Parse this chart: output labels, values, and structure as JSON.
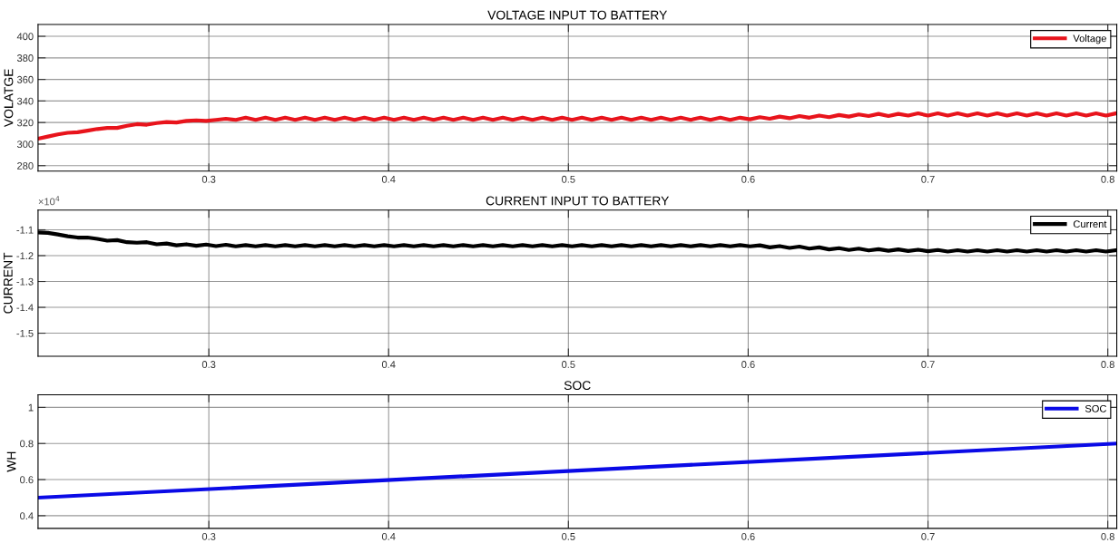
{
  "chart_data": [
    {
      "type": "line",
      "title": "VOLTAGE INPUT TO BATTERY",
      "ylabel": "VOLATGE",
      "x": [
        0.205,
        0.2105,
        0.216,
        0.2215,
        0.227,
        0.2325,
        0.238,
        0.2435,
        0.249,
        0.2545,
        0.26,
        0.2655,
        0.271,
        0.2765,
        0.282,
        0.2875,
        0.293,
        0.2985,
        0.304,
        0.3095,
        0.315,
        0.3205,
        0.326,
        0.3315,
        0.337,
        0.3425,
        0.348,
        0.3535,
        0.359,
        0.3645,
        0.37,
        0.3755,
        0.381,
        0.3865,
        0.392,
        0.3975,
        0.403,
        0.4085,
        0.414,
        0.4195,
        0.425,
        0.4305,
        0.436,
        0.4415,
        0.447,
        0.4525,
        0.458,
        0.4635,
        0.469,
        0.4745,
        0.48,
        0.4855,
        0.491,
        0.4965,
        0.502,
        0.5075,
        0.513,
        0.5185,
        0.524,
        0.5295,
        0.535,
        0.5405,
        0.546,
        0.5515,
        0.557,
        0.5625,
        0.568,
        0.5735,
        0.579,
        0.5845,
        0.59,
        0.5955,
        0.601,
        0.6065,
        0.612,
        0.6175,
        0.623,
        0.6285,
        0.634,
        0.6395,
        0.645,
        0.6505,
        0.656,
        0.6615,
        0.667,
        0.6725,
        0.678,
        0.6835,
        0.689,
        0.6945,
        0.7,
        0.7055,
        0.711,
        0.7165,
        0.722,
        0.7275,
        0.733,
        0.7385,
        0.744,
        0.7495,
        0.755,
        0.7605,
        0.766,
        0.7715,
        0.777,
        0.7825,
        0.788,
        0.7935,
        0.799,
        0.8045
      ],
      "series": [
        {
          "name": "Voltage",
          "color": "#e8141c",
          "values": [
            305,
            307,
            309,
            310.5,
            311,
            312.5,
            314,
            315,
            315,
            317,
            318.5,
            318,
            319.5,
            320.5,
            320,
            321.5,
            322,
            321.5,
            322.5,
            323.5,
            322.5,
            324.5,
            322.5,
            324.5,
            322.5,
            324.5,
            322.5,
            324.5,
            322.5,
            324.5,
            322.5,
            324.5,
            322.5,
            324.5,
            322.5,
            324.5,
            322.5,
            324.5,
            322.5,
            324.5,
            322.5,
            324.5,
            322.5,
            324.5,
            322.5,
            324.5,
            322.5,
            324.5,
            322.5,
            324.5,
            322.5,
            324.5,
            322.5,
            324.5,
            322.5,
            324.5,
            322.5,
            324.5,
            322.5,
            324.5,
            322.5,
            324.5,
            322.5,
            324.5,
            322.5,
            324.5,
            322.5,
            324.5,
            322.5,
            324.5,
            322.5,
            324.5,
            323,
            325,
            323.5,
            325.5,
            324,
            326,
            324.5,
            326.5,
            325,
            327,
            325.5,
            327.5,
            326,
            328,
            326,
            328,
            326.5,
            328.5,
            326.5,
            328.5,
            326.5,
            328.5,
            326.5,
            328.5,
            326.5,
            328.5,
            326.5,
            328.5,
            326.5,
            328.5,
            326.5,
            328.5,
            326.5,
            328.5,
            326.5,
            328.5,
            326.5,
            328.5
          ]
        }
      ],
      "xlim": [
        0.205,
        0.805
      ],
      "xticks": [
        0.3,
        0.4,
        0.5,
        0.6,
        0.7,
        0.8
      ],
      "ylim": [
        275,
        411
      ],
      "yticks": [
        280,
        300,
        320,
        340,
        360,
        380,
        400
      ],
      "grid": true,
      "legend": "top right",
      "line_style": "solid"
    },
    {
      "type": "line",
      "title": "CURRENT INPUT TO BATTERY",
      "ylabel": "CURRENT",
      "annotations": [
        "×10$^{4}$"
      ],
      "x": [
        0.205,
        0.2105,
        0.216,
        0.2215,
        0.227,
        0.2325,
        0.238,
        0.2435,
        0.249,
        0.2545,
        0.26,
        0.2655,
        0.271,
        0.2765,
        0.282,
        0.2875,
        0.293,
        0.2985,
        0.304,
        0.3095,
        0.315,
        0.3205,
        0.326,
        0.3315,
        0.337,
        0.3425,
        0.348,
        0.3535,
        0.359,
        0.3645,
        0.37,
        0.3755,
        0.381,
        0.3865,
        0.392,
        0.3975,
        0.403,
        0.4085,
        0.414,
        0.4195,
        0.425,
        0.4305,
        0.436,
        0.4415,
        0.447,
        0.4525,
        0.458,
        0.4635,
        0.469,
        0.4745,
        0.48,
        0.4855,
        0.491,
        0.4965,
        0.502,
        0.5075,
        0.513,
        0.5185,
        0.524,
        0.5295,
        0.535,
        0.5405,
        0.546,
        0.5515,
        0.557,
        0.5625,
        0.568,
        0.5735,
        0.579,
        0.5845,
        0.59,
        0.5955,
        0.601,
        0.6065,
        0.612,
        0.6175,
        0.623,
        0.6285,
        0.634,
        0.6395,
        0.645,
        0.6505,
        0.656,
        0.6615,
        0.667,
        0.6725,
        0.678,
        0.6835,
        0.689,
        0.6945,
        0.7,
        0.7055,
        0.711,
        0.7165,
        0.722,
        0.7275,
        0.733,
        0.7385,
        0.744,
        0.7495,
        0.755,
        0.7605,
        0.766,
        0.7715,
        0.777,
        0.7825,
        0.788,
        0.7935,
        0.799,
        0.8045
      ],
      "series": [
        {
          "name": "Current",
          "color": "#000000",
          "values": [
            -1.11,
            -1.112,
            -1.118,
            -1.125,
            -1.13,
            -1.13,
            -1.135,
            -1.142,
            -1.14,
            -1.148,
            -1.15,
            -1.148,
            -1.156,
            -1.153,
            -1.16,
            -1.156,
            -1.162,
            -1.157,
            -1.163,
            -1.158,
            -1.164,
            -1.159,
            -1.164,
            -1.159,
            -1.164,
            -1.159,
            -1.164,
            -1.159,
            -1.164,
            -1.159,
            -1.164,
            -1.159,
            -1.164,
            -1.159,
            -1.164,
            -1.159,
            -1.164,
            -1.159,
            -1.164,
            -1.159,
            -1.164,
            -1.159,
            -1.164,
            -1.159,
            -1.164,
            -1.159,
            -1.164,
            -1.159,
            -1.164,
            -1.159,
            -1.164,
            -1.159,
            -1.164,
            -1.159,
            -1.164,
            -1.159,
            -1.164,
            -1.159,
            -1.164,
            -1.159,
            -1.164,
            -1.159,
            -1.164,
            -1.159,
            -1.164,
            -1.159,
            -1.164,
            -1.159,
            -1.164,
            -1.159,
            -1.164,
            -1.159,
            -1.164,
            -1.16,
            -1.168,
            -1.163,
            -1.17,
            -1.165,
            -1.173,
            -1.168,
            -1.176,
            -1.171,
            -1.178,
            -1.173,
            -1.18,
            -1.175,
            -1.181,
            -1.176,
            -1.182,
            -1.177,
            -1.183,
            -1.178,
            -1.184,
            -1.179,
            -1.184,
            -1.179,
            -1.184,
            -1.179,
            -1.184,
            -1.179,
            -1.184,
            -1.179,
            -1.184,
            -1.179,
            -1.184,
            -1.179,
            -1.184,
            -1.179,
            -1.184,
            -1.179
          ]
        }
      ],
      "xlim": [
        0.205,
        0.805
      ],
      "xticks": [
        0.3,
        0.4,
        0.5,
        0.6,
        0.7,
        0.8
      ],
      "ylim": [
        -1.589,
        -1.024
      ],
      "yticks": [
        -1.5,
        -1.4,
        -1.3,
        -1.2,
        -1.1
      ],
      "grid": true,
      "legend": "top right",
      "line_style": "solid"
    },
    {
      "type": "line",
      "title": "SOC",
      "ylabel": "WH",
      "x": [
        0.205,
        0.805
      ],
      "series": [
        {
          "name": "SOC",
          "color": "#0a0ae6",
          "values": [
            0.5,
            0.8
          ]
        }
      ],
      "xlim": [
        0.205,
        0.805
      ],
      "xticks": [
        0.3,
        0.4,
        0.5,
        0.6,
        0.7,
        0.8
      ],
      "ylim": [
        0.33,
        1.07
      ],
      "yticks": [
        0.4,
        0.6,
        0.8,
        1
      ],
      "grid": true,
      "legend": "top right",
      "line_style": "solid"
    }
  ]
}
